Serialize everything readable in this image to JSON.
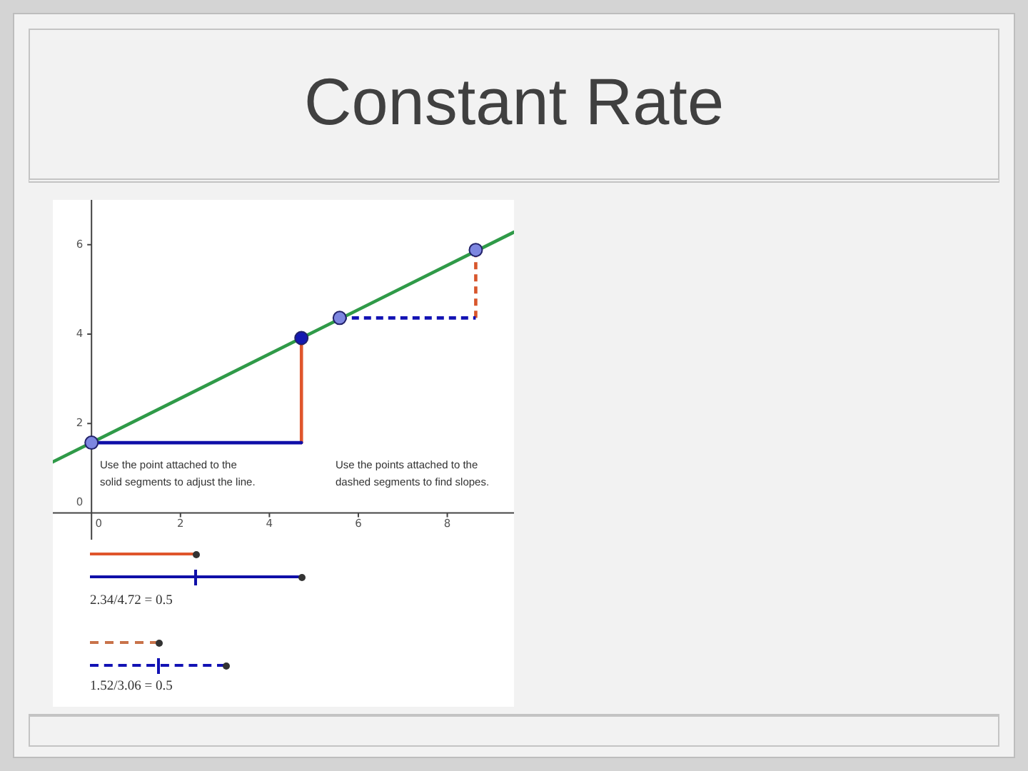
{
  "chart_data": {
    "type": "line",
    "title": "Constant Rate",
    "xlim": [
      -0.87,
      9.5
    ],
    "ylim": [
      -0.6,
      7
    ],
    "xticks": [
      0,
      2,
      4,
      6,
      8
    ],
    "yticks": [
      0,
      2,
      4,
      6
    ],
    "legend": false,
    "series": [
      {
        "x": [
          -0.87,
          9.5
        ],
        "values": [
          1.14,
          6.28
        ],
        "color": "#2f9a48",
        "line_style": "solid"
      },
      {
        "x": [
          0,
          4.72
        ],
        "values": [
          1.57,
          1.57
        ],
        "color": "#0f0fa8",
        "line_style": "solid"
      },
      {
        "x": [
          4.72,
          4.72
        ],
        "values": [
          1.57,
          3.91
        ],
        "color": "#e0552b",
        "line_style": "solid"
      },
      {
        "x": [
          5.58,
          8.64
        ],
        "values": [
          4.36,
          4.36
        ],
        "color": "#1212b4",
        "line_style": "dashed"
      },
      {
        "x": [
          8.64,
          8.64
        ],
        "values": [
          4.36,
          5.88
        ],
        "color": "#d8562c",
        "line_style": "dashed"
      },
      {
        "type": "scatter",
        "marker": "circle",
        "x": [
          0,
          4.72,
          5.58,
          8.64
        ],
        "values": [
          1.57,
          3.91,
          4.36,
          5.88
        ],
        "colors": [
          "#7d86e0",
          "#1418b0",
          "#7d86e0",
          "#7d86e0"
        ]
      }
    ],
    "annotations": [
      "Use the point attached to the solid segments to adjust the line.",
      "Use the points attached to the dashed segments to find slopes.",
      "2.34/4.72 = 0.5",
      "1.52/3.06 = 0.5"
    ]
  }
}
